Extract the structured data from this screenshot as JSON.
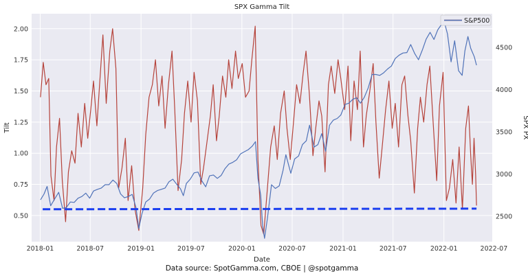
{
  "chart_data": {
    "type": "line",
    "title": "SPX Gamma Tilt",
    "xlabel": "Date",
    "ylabel_left": "Tilt",
    "ylabel_right": "SPX PX",
    "caption": "Data source: SpotGamma.com, CBOE | @spotgamma",
    "x_range": [
      "2017-12-01",
      "2022-06-25"
    ],
    "ylim_left": [
      0.29,
      2.12
    ],
    "ylim_right": [
      2200,
      4900
    ],
    "grid": true,
    "legend_placement": "top-right",
    "x_ticks": [
      "2018-01",
      "2018-07",
      "2019-01",
      "2019-07",
      "2020-01",
      "2020-07",
      "2021-01",
      "2021-07",
      "2022-01",
      "2022-07"
    ],
    "y_ticks_left": [
      0.5,
      0.75,
      1.0,
      1.25,
      1.5,
      1.75,
      2.0
    ],
    "y_ticks_left_labels": [
      "0.50",
      "0.75",
      "1.00",
      "1.25",
      "1.50",
      "1.75",
      "2.00"
    ],
    "y_ticks_right": [
      2500,
      3000,
      3500,
      4000,
      4500
    ],
    "y_ticks_right_labels": [
      "2500",
      "3000",
      "3500",
      "4000",
      "4500"
    ],
    "series": [
      {
        "name": "",
        "axis": "left",
        "color": "#b5423a",
        "style": "solid",
        "x": [
          "2018-01-02",
          "2018-01-12",
          "2018-01-22",
          "2018-02-01",
          "2018-02-09",
          "2018-02-20",
          "2018-03-01",
          "2018-03-12",
          "2018-03-22",
          "2018-04-03",
          "2018-04-13",
          "2018-04-25",
          "2018-05-07",
          "2018-05-18",
          "2018-05-30",
          "2018-06-11",
          "2018-06-22",
          "2018-07-03",
          "2018-07-13",
          "2018-07-25",
          "2018-08-06",
          "2018-08-16",
          "2018-08-28",
          "2018-09-10",
          "2018-09-20",
          "2018-10-02",
          "2018-10-12",
          "2018-10-24",
          "2018-11-05",
          "2018-11-15",
          "2018-11-28",
          "2018-12-10",
          "2018-12-24",
          "2019-01-07",
          "2019-01-18",
          "2019-01-30",
          "2019-02-11",
          "2019-02-22",
          "2019-03-06",
          "2019-03-18",
          "2019-03-29",
          "2019-04-10",
          "2019-04-23",
          "2019-05-03",
          "2019-05-15",
          "2019-05-28",
          "2019-06-07",
          "2019-06-19",
          "2019-07-01",
          "2019-07-12",
          "2019-07-24",
          "2019-08-05",
          "2019-08-15",
          "2019-08-27",
          "2019-09-09",
          "2019-09-19",
          "2019-10-01",
          "2019-10-11",
          "2019-10-23",
          "2019-11-04",
          "2019-11-14",
          "2019-11-26",
          "2019-12-09",
          "2019-12-19",
          "2020-01-02",
          "2020-01-14",
          "2020-01-27",
          "2020-02-06",
          "2020-02-18",
          "2020-02-28",
          "2020-03-10",
          "2020-03-20",
          "2020-04-01",
          "2020-04-14",
          "2020-04-27",
          "2020-05-08",
          "2020-05-20",
          "2020-06-02",
          "2020-06-12",
          "2020-06-24",
          "2020-07-07",
          "2020-07-17",
          "2020-07-29",
          "2020-08-10",
          "2020-08-20",
          "2020-09-01",
          "2020-09-14",
          "2020-09-24",
          "2020-10-06",
          "2020-10-16",
          "2020-10-28",
          "2020-11-09",
          "2020-11-19",
          "2020-12-02",
          "2020-12-14",
          "2020-12-24",
          "2021-01-07",
          "2021-01-19",
          "2021-01-29",
          "2021-02-10",
          "2021-02-22",
          "2021-03-04",
          "2021-03-16",
          "2021-03-26",
          "2021-04-08",
          "2021-04-20",
          "2021-04-30",
          "2021-05-12",
          "2021-05-24",
          "2021-06-04",
          "2021-06-16",
          "2021-06-28",
          "2021-07-09",
          "2021-07-21",
          "2021-08-02",
          "2021-08-12",
          "2021-08-24",
          "2021-09-03",
          "2021-09-16",
          "2021-09-28",
          "2021-10-08",
          "2021-10-20",
          "2021-11-01",
          "2021-11-11",
          "2021-11-23",
          "2021-12-06",
          "2021-12-16",
          "2021-12-29",
          "2022-01-10",
          "2022-01-21",
          "2022-02-02",
          "2022-02-14",
          "2022-02-25",
          "2022-03-09",
          "2022-03-21",
          "2022-03-31",
          "2022-04-08",
          "2022-04-14",
          "2022-04-20",
          "2022-04-26",
          "2022-04-29"
        ],
        "values": [
          1.45,
          1.73,
          1.55,
          1.6,
          0.82,
          0.62,
          1.05,
          1.28,
          0.78,
          0.45,
          0.85,
          1.02,
          0.92,
          1.32,
          1.05,
          1.4,
          1.12,
          1.35,
          1.58,
          1.22,
          1.62,
          1.95,
          1.4,
          1.82,
          2.0,
          1.68,
          0.72,
          0.88,
          1.12,
          0.62,
          0.9,
          0.55,
          0.38,
          0.72,
          1.15,
          1.45,
          1.55,
          1.75,
          1.38,
          1.62,
          1.2,
          1.55,
          1.82,
          1.35,
          0.7,
          0.95,
          1.32,
          1.58,
          1.25,
          1.65,
          1.42,
          0.75,
          0.88,
          1.08,
          1.3,
          1.55,
          1.1,
          1.3,
          1.62,
          1.45,
          1.75,
          1.52,
          1.82,
          1.6,
          1.72,
          1.45,
          1.5,
          1.75,
          2.02,
          0.95,
          0.42,
          0.35,
          0.68,
          1.05,
          1.22,
          0.95,
          1.32,
          1.5,
          1.2,
          0.95,
          1.28,
          1.55,
          1.4,
          1.65,
          1.82,
          1.48,
          0.98,
          1.2,
          1.42,
          1.3,
          0.85,
          1.55,
          1.7,
          1.48,
          1.75,
          1.6,
          1.35,
          1.7,
          1.1,
          1.58,
          1.35,
          1.82,
          1.05,
          1.3,
          1.5,
          1.72,
          1.25,
          0.8,
          1.08,
          1.35,
          1.58,
          1.2,
          1.4,
          1.05,
          1.55,
          1.62,
          1.3,
          1.1,
          0.68,
          1.2,
          1.45,
          1.25,
          1.55,
          1.7,
          1.25,
          0.78,
          1.38,
          1.65,
          0.62,
          0.72,
          0.95,
          0.6,
          1.05,
          0.55,
          1.2,
          1.38,
          0.98,
          0.75,
          1.12,
          0.82,
          0.58
        ]
      },
      {
        "name": "S&P500",
        "axis": "right",
        "color": "#4f72b8",
        "style": "solid",
        "x": [
          "2018-01-02",
          "2018-01-15",
          "2018-01-26",
          "2018-02-08",
          "2018-02-22",
          "2018-03-09",
          "2018-03-23",
          "2018-04-06",
          "2018-04-20",
          "2018-05-04",
          "2018-05-18",
          "2018-06-01",
          "2018-06-15",
          "2018-06-29",
          "2018-07-13",
          "2018-07-27",
          "2018-08-10",
          "2018-08-24",
          "2018-09-07",
          "2018-09-21",
          "2018-10-05",
          "2018-10-19",
          "2018-11-02",
          "2018-11-16",
          "2018-11-30",
          "2018-12-14",
          "2018-12-24",
          "2019-01-04",
          "2019-01-18",
          "2019-02-01",
          "2019-02-15",
          "2019-03-01",
          "2019-03-15",
          "2019-03-29",
          "2019-04-12",
          "2019-04-26",
          "2019-05-10",
          "2019-05-24",
          "2019-06-03",
          "2019-06-14",
          "2019-06-28",
          "2019-07-12",
          "2019-07-26",
          "2019-08-09",
          "2019-08-23",
          "2019-09-06",
          "2019-09-20",
          "2019-10-04",
          "2019-10-18",
          "2019-11-01",
          "2019-11-15",
          "2019-11-29",
          "2019-12-13",
          "2019-12-27",
          "2020-01-10",
          "2020-01-24",
          "2020-02-07",
          "2020-02-19",
          "2020-02-28",
          "2020-03-09",
          "2020-03-16",
          "2020-03-23",
          "2020-04-03",
          "2020-04-17",
          "2020-05-01",
          "2020-05-15",
          "2020-05-29",
          "2020-06-08",
          "2020-06-26",
          "2020-07-10",
          "2020-07-24",
          "2020-08-07",
          "2020-08-21",
          "2020-09-02",
          "2020-09-18",
          "2020-10-02",
          "2020-10-16",
          "2020-10-30",
          "2020-11-13",
          "2020-11-27",
          "2020-12-11",
          "2020-12-24",
          "2021-01-08",
          "2021-01-22",
          "2021-02-05",
          "2021-02-19",
          "2021-03-05",
          "2021-03-19",
          "2021-04-02",
          "2021-04-16",
          "2021-04-30",
          "2021-05-14",
          "2021-05-28",
          "2021-06-11",
          "2021-06-25",
          "2021-07-09",
          "2021-07-23",
          "2021-08-06",
          "2021-08-20",
          "2021-09-03",
          "2021-09-17",
          "2021-10-01",
          "2021-10-15",
          "2021-10-29",
          "2021-11-12",
          "2021-11-26",
          "2021-12-10",
          "2021-12-27",
          "2022-01-03",
          "2022-01-14",
          "2022-01-27",
          "2022-02-09",
          "2022-02-23",
          "2022-03-08",
          "2022-03-18",
          "2022-03-29",
          "2022-04-08",
          "2022-04-21",
          "2022-04-29"
        ],
        "values": [
          2695,
          2765,
          2855,
          2625,
          2705,
          2785,
          2595,
          2605,
          2670,
          2665,
          2715,
          2735,
          2775,
          2715,
          2800,
          2820,
          2835,
          2875,
          2875,
          2930,
          2890,
          2765,
          2720,
          2735,
          2760,
          2600,
          2355,
          2530,
          2670,
          2705,
          2775,
          2805,
          2820,
          2835,
          2910,
          2940,
          2880,
          2825,
          2745,
          2890,
          2940,
          3015,
          3025,
          2920,
          2850,
          2980,
          2990,
          2950,
          2985,
          3065,
          3120,
          3140,
          3170,
          3240,
          3265,
          3290,
          3330,
          3385,
          2950,
          2750,
          2390,
          2240,
          2490,
          2875,
          2830,
          2860,
          3045,
          3230,
          3010,
          3180,
          3215,
          3350,
          3395,
          3580,
          3320,
          3350,
          3480,
          3270,
          3580,
          3640,
          3660,
          3700,
          3825,
          3840,
          3885,
          3905,
          3840,
          3910,
          4020,
          4180,
          4180,
          4170,
          4200,
          4245,
          4280,
          4370,
          4410,
          4435,
          4440,
          4535,
          4430,
          4355,
          4470,
          4600,
          4680,
          4595,
          4710,
          4790,
          4795,
          4660,
          4330,
          4580,
          4225,
          4170,
          4460,
          4630,
          4490,
          4390,
          4290
        ]
      },
      {
        "name": "",
        "axis": "left",
        "color": "#1a3ef0",
        "style": "dashed",
        "x": [
          "2018-01-10",
          "2022-04-29"
        ],
        "values": [
          0.55,
          0.555
        ]
      }
    ]
  }
}
